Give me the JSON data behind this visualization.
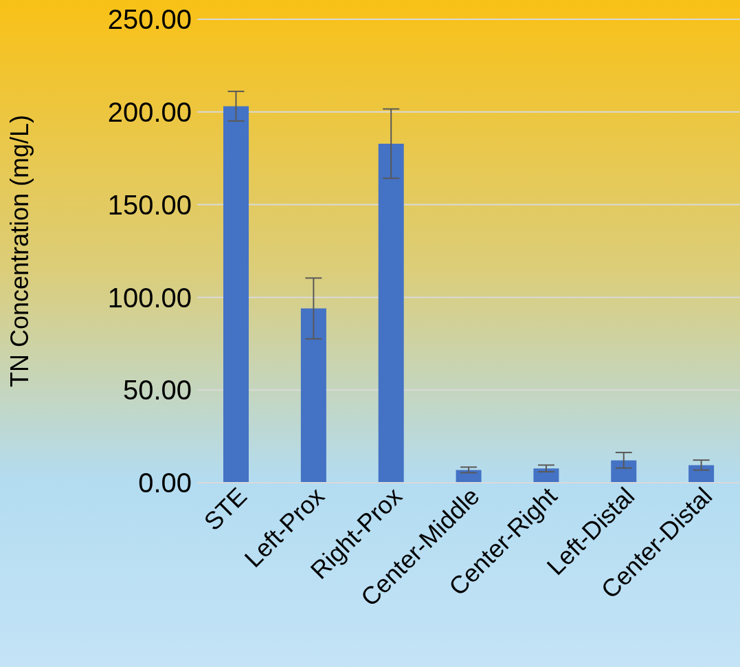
{
  "chart_data": {
    "type": "bar",
    "ylabel": "TN Concentration (mg/L)",
    "categories": [
      "STE",
      "Left-Prox",
      "Right-Prox",
      "Center-Middle",
      "Center-Right",
      "Left-Distal",
      "Center-Distal"
    ],
    "values": [
      203.1,
      94.0,
      182.9,
      6.9,
      7.7,
      12.1,
      9.5
    ],
    "errors": [
      8,
      16.4,
      18.7,
      1.5,
      1.8,
      4.2,
      2.7
    ],
    "color": "#4472c4",
    "ylim": [
      0,
      250
    ],
    "yticks": [
      {
        "value": 0,
        "label": "0.00"
      },
      {
        "value": 50,
        "label": "50.00"
      },
      {
        "value": 100,
        "label": "100.00"
      },
      {
        "value": 150,
        "label": "150.00"
      },
      {
        "value": 200,
        "label": "200.00"
      },
      {
        "value": 250,
        "label": "250.00"
      }
    ],
    "grid": "y"
  }
}
